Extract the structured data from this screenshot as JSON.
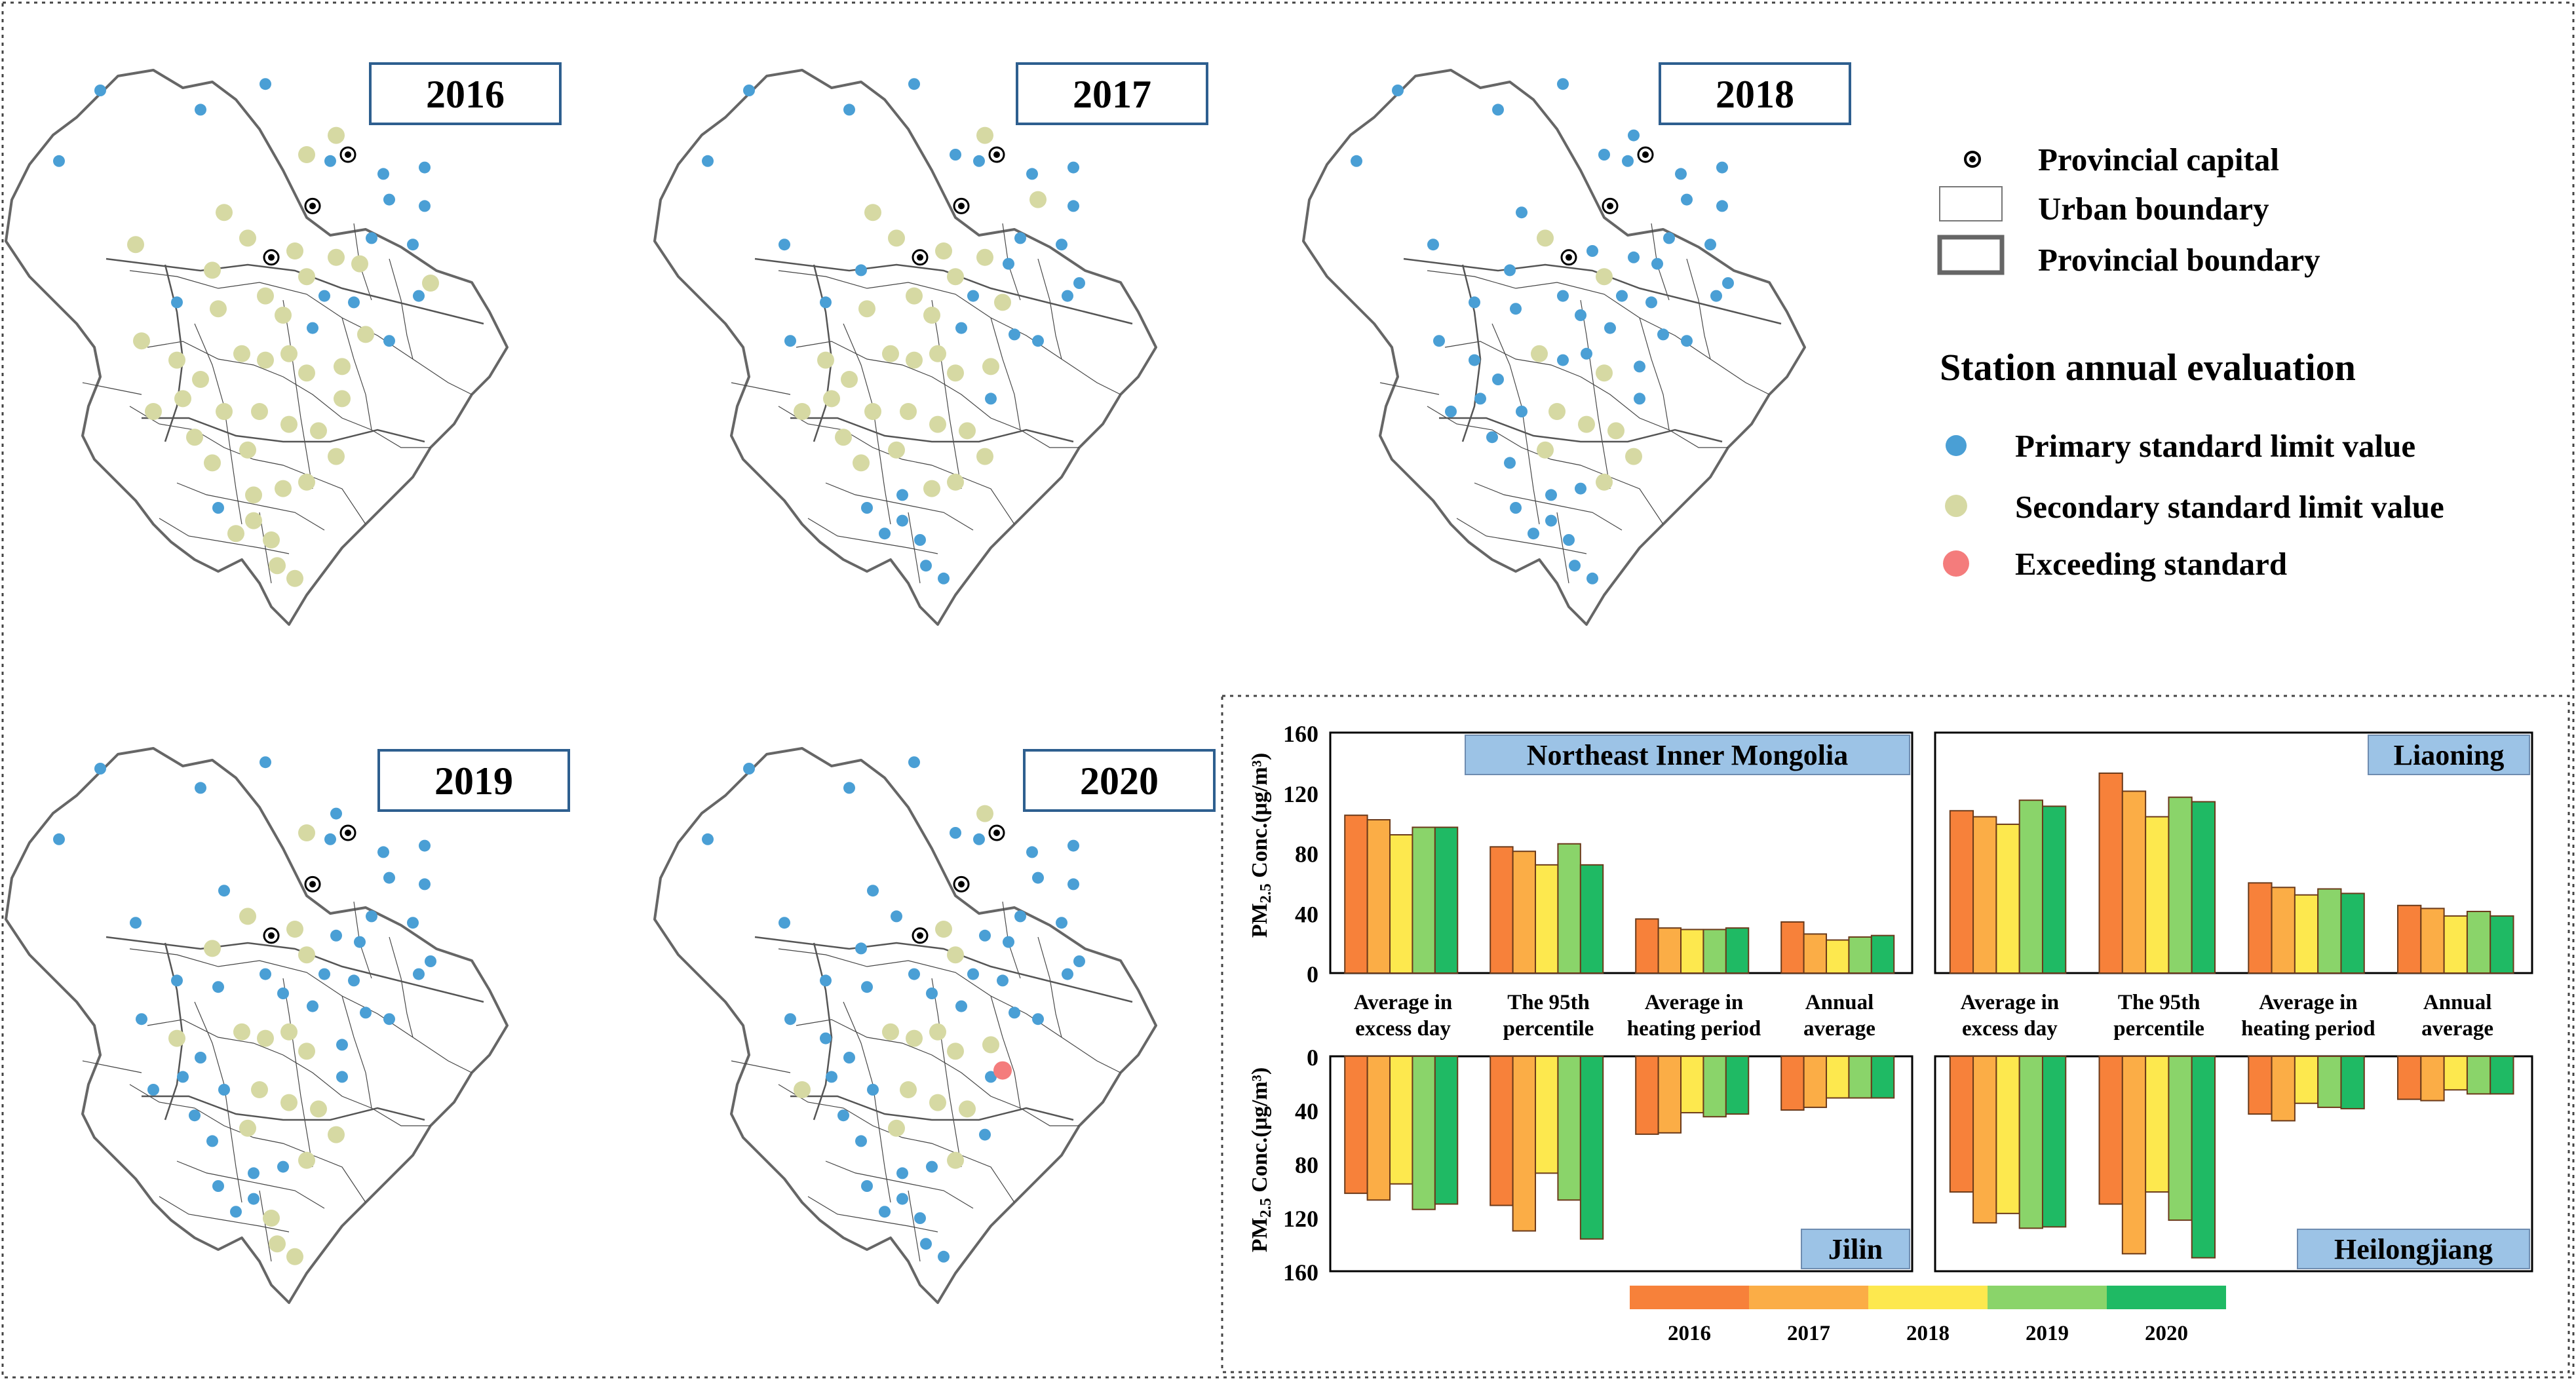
{
  "maps": [
    {
      "year": "2016"
    },
    {
      "year": "2017"
    },
    {
      "year": "2018"
    },
    {
      "year": "2019"
    },
    {
      "year": "2020"
    }
  ],
  "legend": {
    "provincial_capital": "Provincial capital",
    "urban_boundary": "Urban boundary",
    "provincial_boundary": "Provincial boundary",
    "station_title": "Station annual evaluation",
    "primary": "Primary standard limit value",
    "secondary": "Secondary standard limit value",
    "exceeding": "Exceeding standard"
  },
  "colors": {
    "primary": "#4a9fd5",
    "secondary": "#d6d9a3",
    "exceeding": "#f47c7c",
    "years": [
      "#f7813a",
      "#fbad46",
      "#fde84e",
      "#8ad46a",
      "#1fba64"
    ],
    "label_box": "#9cc3e6"
  },
  "chart_data": {
    "type": "bar",
    "series_names": [
      "2016",
      "2017",
      "2018",
      "2019",
      "2020"
    ],
    "categories": [
      "Average in\nexcess day",
      "The 95th\npercentile",
      "Average in\nheating period",
      "Annual\naverage"
    ],
    "ylabel": "PM2.5 Conc.(μg/m³)",
    "ylim": [
      0,
      160
    ],
    "yticks": [
      0,
      40,
      80,
      120,
      160
    ],
    "panels": [
      {
        "name": "Northeast Inner Mongolia",
        "direction": "up",
        "values": [
          [
            105,
            102,
            92,
            97,
            97
          ],
          [
            84,
            81,
            72,
            86,
            72
          ],
          [
            36,
            30,
            29,
            29,
            30
          ],
          [
            34,
            26,
            22,
            24,
            25
          ]
        ]
      },
      {
        "name": "Liaoning",
        "direction": "up",
        "values": [
          [
            108,
            104,
            99,
            115,
            111
          ],
          [
            133,
            121,
            104,
            117,
            114
          ],
          [
            60,
            57,
            52,
            56,
            53
          ],
          [
            45,
            43,
            38,
            41,
            38
          ]
        ]
      },
      {
        "name": "Jilin",
        "direction": "down",
        "values": [
          [
            102,
            107,
            95,
            114,
            110
          ],
          [
            111,
            130,
            87,
            107,
            136
          ],
          [
            58,
            57,
            42,
            45,
            43
          ],
          [
            40,
            38,
            31,
            31,
            31
          ]
        ]
      },
      {
        "name": "Heilongjiang",
        "direction": "down",
        "values": [
          [
            101,
            124,
            117,
            128,
            127
          ],
          [
            110,
            147,
            101,
            122,
            150
          ],
          [
            43,
            48,
            35,
            38,
            39
          ],
          [
            32,
            33,
            25,
            28,
            28
          ]
        ]
      }
    ]
  }
}
